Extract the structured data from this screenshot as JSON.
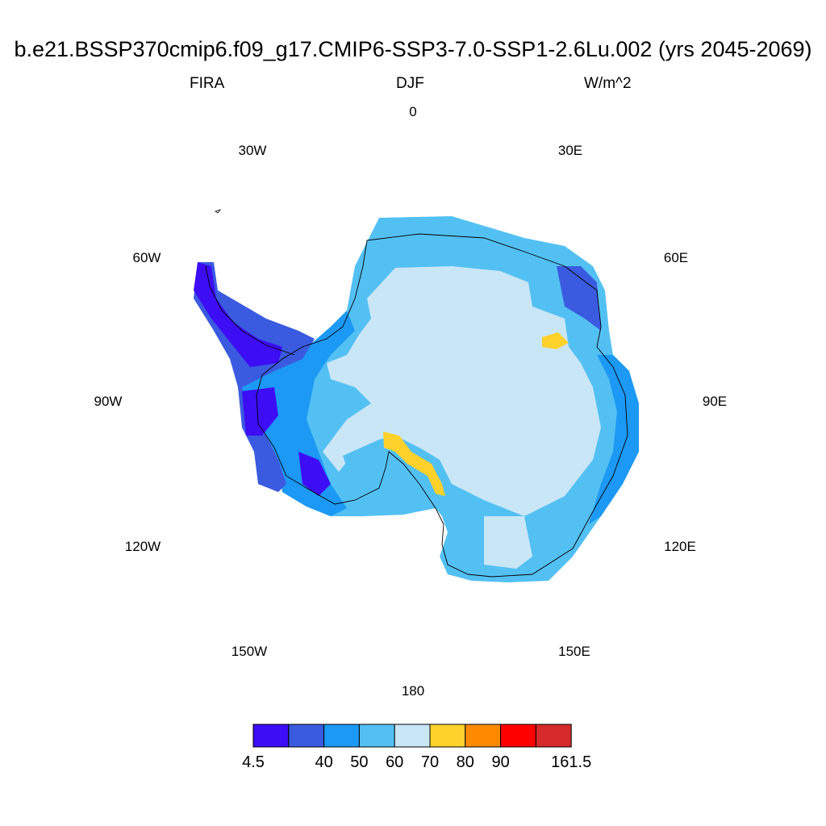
{
  "title": "b.e21.BSSP370cmip6.f09_g17.CMIP6-SSP3-7.0-SSP1-2.6Lu.002 (yrs 2045-2069)",
  "left_label": "FIRA",
  "center_label": "DJF",
  "right_label": "W/m^2",
  "longitude_labels": [
    "0",
    "30E",
    "60E",
    "90E",
    "120E",
    "150E",
    "180",
    "150W",
    "120W",
    "90W",
    "60W",
    "30W"
  ],
  "colors": {
    "c1": "#3d0df5",
    "c2": "#3a5ae0",
    "c3": "#1c99f5",
    "c4": "#53c0f3",
    "c5": "#c9e6f7",
    "c6": "#ffd12a",
    "c7": "#ff8a00",
    "c8": "#ff0000",
    "c9": "#d42a2a"
  },
  "colorbar": {
    "colors": [
      "#3d0df5",
      "#3a5ae0",
      "#1c99f5",
      "#53c0f3",
      "#c9e6f7",
      "#ffd12a",
      "#ff8a00",
      "#ff0000",
      "#d42a2a"
    ],
    "labels": [
      "4.5",
      "",
      "40",
      "50",
      "60",
      "70",
      "80",
      "90",
      "161.5"
    ]
  },
  "map_data": {
    "variable": "FIRA",
    "season": "DJF",
    "units": "W/m^2",
    "region": "Antarctica (south polar stereographic)",
    "interior_plateau_range": "60-70",
    "coastal_ring_range": "50-60",
    "peninsula_range": "4.5-40",
    "ice_shelf_patches_range": "70-80"
  }
}
